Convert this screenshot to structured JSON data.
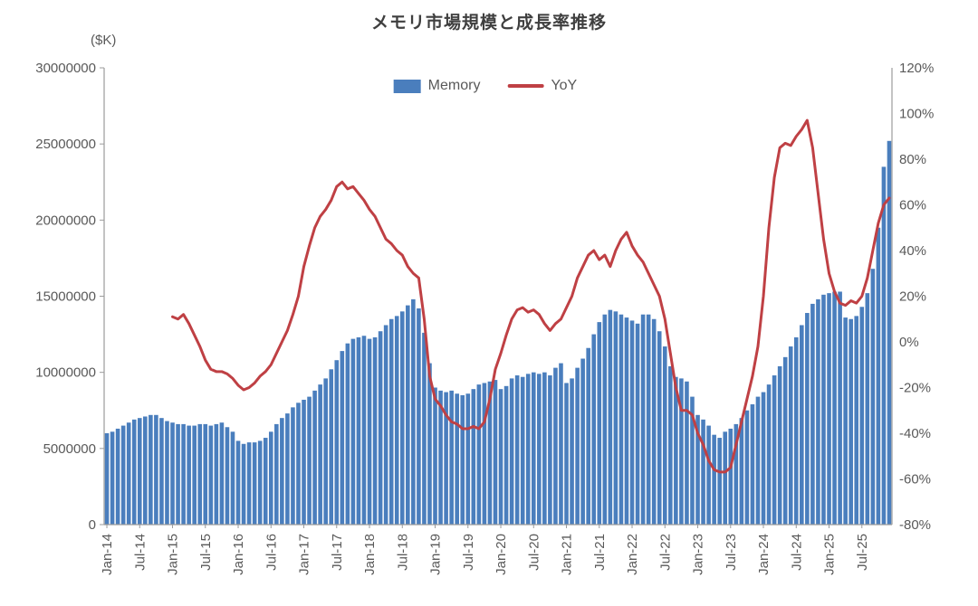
{
  "chart_data": {
    "type": "bar+line",
    "title": "メモリ市場規模と成長率推移",
    "unit_label": "($K)",
    "x_start": "Jan-14",
    "x_interval": "monthly",
    "tick_every": 6,
    "x_tick_labels": [
      "Jan-14",
      "Jul-14",
      "Jan-15",
      "Jul-15",
      "Jan-16",
      "Jul-16",
      "Jan-17",
      "Jul-17",
      "Jan-18",
      "Jul-18",
      "Jan-19",
      "Jul-19",
      "Jan-20",
      "Jul-20",
      "Jan-21",
      "Jul-21",
      "Jan-22",
      "Jul-22",
      "Jan-23",
      "Jul-23",
      "Jan-24",
      "Jul-24",
      "Jan-25",
      "Jul-25"
    ],
    "left_axis": {
      "min": 0,
      "max": 30000000,
      "ticks": [
        0,
        5000000,
        10000000,
        15000000,
        20000000,
        25000000,
        30000000
      ]
    },
    "right_axis": {
      "min": -80,
      "max": 120,
      "ticks": [
        -80,
        -60,
        -40,
        -20,
        0,
        20,
        40,
        60,
        80,
        100,
        120
      ],
      "format": "percent"
    },
    "legend_position": "top-center",
    "grid": false,
    "axis_color": "#9b9b9b",
    "series": [
      {
        "name": "Memory",
        "type": "bar",
        "axis": "left",
        "color": "#4a7ebd",
        "values": [
          6000000,
          6100000,
          6300000,
          6500000,
          6700000,
          6900000,
          7000000,
          7100000,
          7200000,
          7200000,
          7000000,
          6800000,
          6700000,
          6600000,
          6600000,
          6500000,
          6500000,
          6600000,
          6600000,
          6500000,
          6600000,
          6700000,
          6400000,
          6100000,
          5500000,
          5300000,
          5400000,
          5400000,
          5500000,
          5700000,
          6100000,
          6600000,
          7000000,
          7300000,
          7700000,
          8000000,
          8200000,
          8400000,
          8800000,
          9200000,
          9600000,
          10200000,
          10800000,
          11400000,
          11900000,
          12200000,
          12300000,
          12400000,
          12200000,
          12300000,
          12700000,
          13100000,
          13500000,
          13700000,
          14000000,
          14400000,
          14800000,
          14200000,
          12600000,
          10600000,
          9000000,
          8800000,
          8700000,
          8800000,
          8600000,
          8500000,
          8600000,
          8900000,
          9200000,
          9300000,
          9400000,
          9500000,
          8900000,
          9100000,
          9600000,
          9800000,
          9700000,
          9900000,
          10000000,
          9900000,
          10000000,
          9800000,
          10300000,
          10600000,
          9300000,
          9600000,
          10300000,
          10900000,
          11600000,
          12500000,
          13300000,
          13800000,
          14100000,
          14000000,
          13800000,
          13600000,
          13400000,
          13200000,
          13800000,
          13800000,
          13500000,
          12700000,
          11700000,
          10400000,
          9700000,
          9600000,
          9400000,
          8400000,
          7200000,
          6900000,
          6500000,
          5900000,
          5700000,
          6100000,
          6300000,
          6600000,
          7000000,
          7500000,
          7900000,
          8400000,
          8700000,
          9200000,
          9800000,
          10400000,
          11000000,
          11700000,
          12300000,
          13100000,
          13900000,
          14500000,
          14800000,
          15100000,
          15200000,
          15300000,
          15300000,
          13600000,
          13500000,
          13700000,
          14300000,
          15200000,
          16800000,
          19500000,
          23500000,
          25200000
        ]
      },
      {
        "name": "YoY",
        "type": "line",
        "axis": "right",
        "color": "#bf4044",
        "values": [
          null,
          null,
          null,
          null,
          null,
          null,
          null,
          null,
          null,
          null,
          null,
          null,
          11,
          10,
          12,
          8,
          3,
          -2,
          -8,
          -12,
          -13,
          -13,
          -14,
          -16,
          -19,
          -21,
          -20,
          -18,
          -15,
          -13,
          -10,
          -5,
          0,
          5,
          12,
          20,
          33,
          42,
          50,
          55,
          58,
          62,
          68,
          70,
          67,
          68,
          65,
          62,
          58,
          55,
          50,
          45,
          43,
          40,
          38,
          33,
          30,
          28,
          10,
          -15,
          -25,
          -28,
          -32,
          -35,
          -36,
          -38,
          -38,
          -37,
          -38,
          -35,
          -25,
          -12,
          -5,
          3,
          10,
          14,
          15,
          13,
          14,
          12,
          8,
          5,
          8,
          10,
          15,
          20,
          28,
          33,
          38,
          40,
          36,
          38,
          33,
          40,
          45,
          48,
          42,
          38,
          35,
          30,
          25,
          20,
          10,
          -5,
          -20,
          -30,
          -30,
          -32,
          -40,
          -45,
          -52,
          -56,
          -57,
          -57,
          -55,
          -45,
          -35,
          -25,
          -15,
          -2,
          20,
          50,
          72,
          85,
          87,
          86,
          90,
          93,
          97,
          85,
          65,
          45,
          30,
          22,
          17,
          16,
          18,
          17,
          20,
          28,
          40,
          52,
          60,
          63
        ]
      }
    ]
  }
}
